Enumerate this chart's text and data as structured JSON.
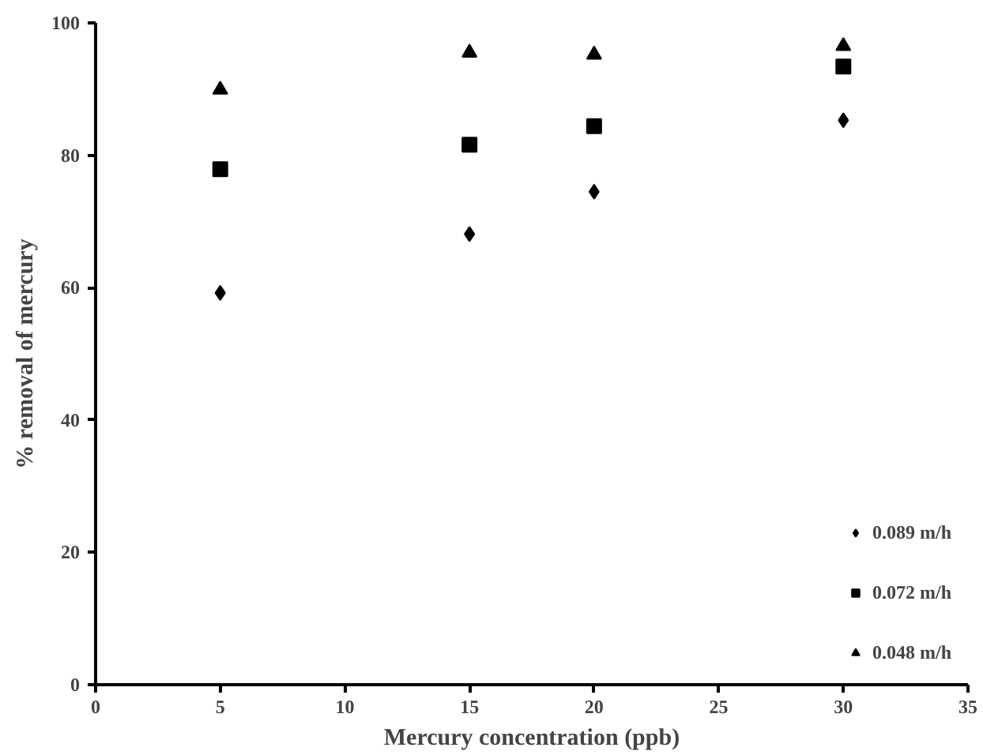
{
  "chart_data": {
    "type": "scatter",
    "xlabel": "Mercury concentration (ppb)",
    "ylabel": "% removal of mercury",
    "x": [
      5,
      15,
      20,
      30
    ],
    "series": [
      {
        "name": "0.089 m/h",
        "color": "#000000",
        "marker": "diamond",
        "values": [
          59.2,
          68.1,
          74.5,
          85.3
        ]
      },
      {
        "name": "0.072 m/h",
        "color": "#000000",
        "marker": "square",
        "values": [
          77.9,
          81.6,
          84.4,
          93.4
        ]
      },
      {
        "name": "0.048 m/h",
        "color": "#000000",
        "marker": "triangle",
        "values": [
          89.9,
          95.5,
          95.2,
          96.5
        ]
      }
    ],
    "xlim": [
      0,
      35
    ],
    "xticks": [
      0,
      5,
      10,
      15,
      20,
      25,
      30,
      35
    ],
    "ylim": [
      0,
      100
    ],
    "yticks": [
      0,
      20,
      40,
      60,
      80,
      100
    ],
    "grid": false,
    "legend": "bottom right"
  }
}
